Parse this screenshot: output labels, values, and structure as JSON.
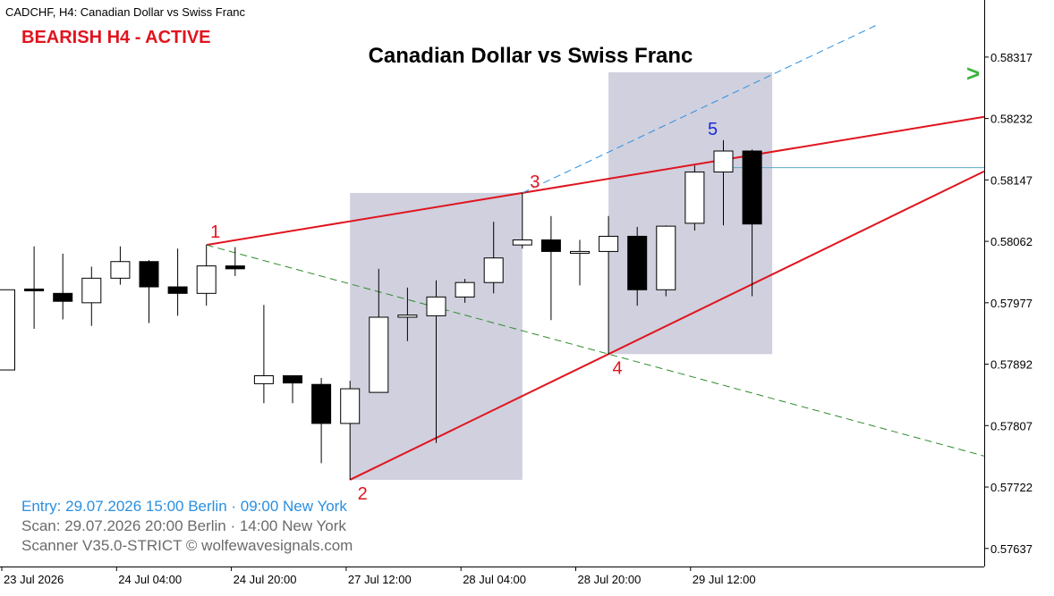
{
  "window": {
    "title": "CADCHF, H4:  Canadian Dollar vs Swiss Franc"
  },
  "overlay": {
    "signal": "BEARISH H4 - ACTIVE",
    "heading": "Canadian Dollar vs Swiss Franc",
    "entry_line": "Entry: 29.07.2026  15:00 Berlin · 09:00 New York",
    "scan_line": "Scan:  29.07.2026  20:00 Berlin · 14:00 New York",
    "scanner_line": "Scanner V35.0-STRICT   © wolfewavesignals.com",
    "arrow_glyph": ">",
    "colors": {
      "signal": "#e0141e",
      "entry": "#2a8fe0",
      "info": "#6b6b6b",
      "arrow": "#3cb43c",
      "wave_point": "#e0141e",
      "wave_point_5": "#1a2ad8"
    }
  },
  "chart_data": {
    "type": "candlestick",
    "symbol": "CADCHF",
    "timeframe": "H4",
    "ylim": [
      0.57612,
      0.58396
    ],
    "y_ticks": [
      "0.58317",
      "0.58232",
      "0.58147",
      "0.58062",
      "0.57977",
      "0.57892",
      "0.57807",
      "0.57722",
      "0.57637"
    ],
    "x_labels": [
      "23 Jul 2026",
      "24 Jul 04:00",
      "24 Jul 20:00",
      "27 Jul 12:00",
      "28 Jul 04:00",
      "28 Jul 20:00",
      "29 Jul 12:00"
    ],
    "candles": [
      {
        "o": 0.57884,
        "h": 0.57995,
        "l": 0.57884,
        "c": 0.57995
      },
      {
        "o": 0.57996,
        "h": 0.58055,
        "l": 0.57941,
        "c": 0.57994
      },
      {
        "o": 0.5799,
        "h": 0.58045,
        "l": 0.57954,
        "c": 0.57979
      },
      {
        "o": 0.57977,
        "h": 0.58027,
        "l": 0.57945,
        "c": 0.58011
      },
      {
        "o": 0.58011,
        "h": 0.58055,
        "l": 0.58002,
        "c": 0.58034
      },
      {
        "o": 0.58034,
        "h": 0.58036,
        "l": 0.57949,
        "c": 0.57999
      },
      {
        "o": 0.57999,
        "h": 0.58052,
        "l": 0.57959,
        "c": 0.5799
      },
      {
        "o": 0.5799,
        "h": 0.58057,
        "l": 0.57973,
        "c": 0.58028
      },
      {
        "o": 0.58028,
        "h": 0.58054,
        "l": 0.58014,
        "c": 0.58024
      },
      {
        "o": 0.57865,
        "h": 0.57974,
        "l": 0.57838,
        "c": 0.57876
      },
      {
        "o": 0.57876,
        "h": 0.57876,
        "l": 0.57838,
        "c": 0.57866
      },
      {
        "o": 0.57864,
        "h": 0.57873,
        "l": 0.57755,
        "c": 0.5781
      },
      {
        "o": 0.5781,
        "h": 0.57869,
        "l": 0.57732,
        "c": 0.57858
      },
      {
        "o": 0.57853,
        "h": 0.58024,
        "l": 0.57853,
        "c": 0.57957
      },
      {
        "o": 0.57957,
        "h": 0.57998,
        "l": 0.57924,
        "c": 0.5796
      },
      {
        "o": 0.57959,
        "h": 0.58008,
        "l": 0.57783,
        "c": 0.57985
      },
      {
        "o": 0.57985,
        "h": 0.5801,
        "l": 0.57977,
        "c": 0.58005
      },
      {
        "o": 0.58005,
        "h": 0.58089,
        "l": 0.5799,
        "c": 0.58039
      },
      {
        "o": 0.58057,
        "h": 0.58129,
        "l": 0.58052,
        "c": 0.58064
      },
      {
        "o": 0.58064,
        "h": 0.58097,
        "l": 0.57953,
        "c": 0.58048
      },
      {
        "o": 0.58048,
        "h": 0.58064,
        "l": 0.58001,
        "c": 0.58048
      },
      {
        "o": 0.58048,
        "h": 0.58097,
        "l": 0.57906,
        "c": 0.58069
      },
      {
        "o": 0.58069,
        "h": 0.58082,
        "l": 0.57973,
        "c": 0.57995
      },
      {
        "o": 0.57995,
        "h": 0.58084,
        "l": 0.57986,
        "c": 0.58083
      },
      {
        "o": 0.58087,
        "h": 0.58167,
        "l": 0.58077,
        "c": 0.58158
      },
      {
        "o": 0.58158,
        "h": 0.58202,
        "l": 0.58084,
        "c": 0.58187
      },
      {
        "o": 0.58187,
        "h": 0.58189,
        "l": 0.57986,
        "c": 0.58086
      }
    ],
    "wave_points": [
      {
        "label": "1",
        "bar": 7,
        "price": 0.58057
      },
      {
        "label": "2",
        "bar": 12,
        "price": 0.57732
      },
      {
        "label": "3",
        "bar": 18,
        "price": 0.58129
      },
      {
        "label": "4",
        "bar": 21,
        "price": 0.57906
      },
      {
        "label": "5",
        "bar": 25,
        "price": 0.58202
      }
    ],
    "zones": [
      {
        "from_bar": 12,
        "to_bar": 18,
        "top": 0.58129,
        "bottom": 0.57732
      },
      {
        "from_bar": 21,
        "to_bar": 26.7,
        "top": 0.58296,
        "bottom": 0.57906
      }
    ],
    "horizontal_level": 0.58164,
    "colors": {
      "bull_body": "#ffffff",
      "bear_body": "#000000",
      "wave_line": "#e0141e",
      "zone": "#d0d0de",
      "projection_blue": "#2a8fe0",
      "projection_green": "#2e8b2e",
      "level_line": "#5fa8c8"
    }
  }
}
